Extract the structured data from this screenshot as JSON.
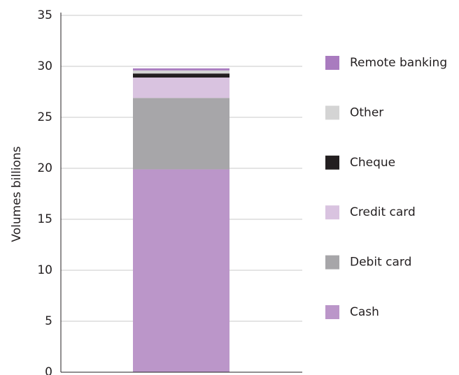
{
  "chart_data": {
    "type": "stacked_bar",
    "y_label": "Volumes billions",
    "categories": [
      null
    ],
    "series": [
      {
        "name": "Cash",
        "color": "#bb96c9",
        "values": [
          19.9
        ]
      },
      {
        "name": "Debit card",
        "color": "#a7a6a9",
        "values": [
          7.0
        ]
      },
      {
        "name": "Credit card",
        "color": "#d9c3e0",
        "values": [
          2.0
        ]
      },
      {
        "name": "Cheque",
        "color": "#231f20",
        "values": [
          0.4
        ]
      },
      {
        "name": "Other",
        "color": "#d4d4d4",
        "values": [
          0.3
        ]
      },
      {
        "name": "Remote banking",
        "color": "#a97bbf",
        "values": [
          0.2
        ]
      }
    ],
    "ylim": [
      0,
      35
    ],
    "yticks": [
      0,
      5,
      10,
      15,
      20,
      25,
      30,
      35
    ],
    "grid": true,
    "legend": "right"
  }
}
